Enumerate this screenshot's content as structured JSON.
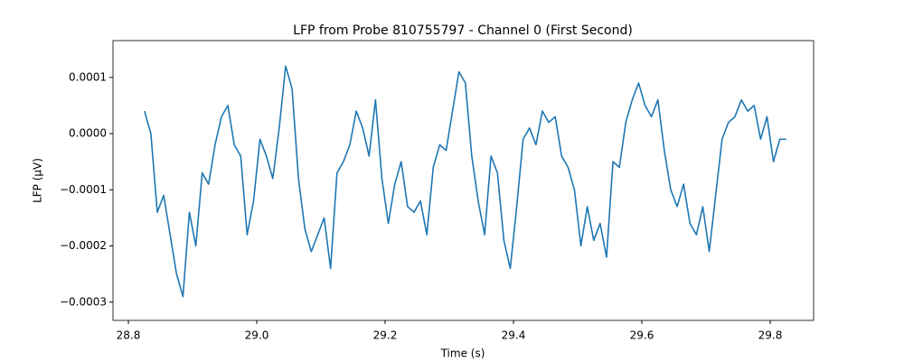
{
  "chart_data": {
    "type": "line",
    "title": "LFP from Probe 810755797 - Channel 0 (First Second)",
    "xlabel": "Time (s)",
    "ylabel": "LFP (µV)",
    "x": [
      28.825,
      28.835,
      28.845,
      28.855,
      28.865,
      28.875,
      28.885,
      28.895,
      28.905,
      28.915,
      28.925,
      28.935,
      28.945,
      28.955,
      28.965,
      28.975,
      28.985,
      28.995,
      29.005,
      29.015,
      29.025,
      29.035,
      29.045,
      29.055,
      29.065,
      29.075,
      29.085,
      29.095,
      29.105,
      29.115,
      29.125,
      29.135,
      29.145,
      29.155,
      29.165,
      29.175,
      29.185,
      29.195,
      29.205,
      29.215,
      29.225,
      29.235,
      29.245,
      29.255,
      29.265,
      29.275,
      29.285,
      29.295,
      29.305,
      29.315,
      29.325,
      29.335,
      29.345,
      29.355,
      29.365,
      29.375,
      29.385,
      29.395,
      29.405,
      29.415,
      29.425,
      29.435,
      29.445,
      29.455,
      29.465,
      29.475,
      29.485,
      29.495,
      29.505,
      29.515,
      29.525,
      29.535,
      29.545,
      29.555,
      29.565,
      29.575,
      29.585,
      29.595,
      29.605,
      29.615,
      29.625,
      29.635,
      29.645,
      29.655,
      29.665,
      29.675,
      29.685,
      29.695,
      29.705,
      29.715,
      29.725,
      29.735,
      29.745,
      29.755,
      29.765,
      29.775,
      29.785,
      29.795,
      29.805,
      29.815,
      29.825
    ],
    "series": [
      {
        "name": "Channel 0",
        "color": "#1f77b4",
        "values": [
          4e-05,
          0.0,
          -0.00014,
          -0.00011,
          -0.00018,
          -0.00025,
          -0.00029,
          -0.00014,
          -0.0002,
          -7e-05,
          -9e-05,
          -2e-05,
          3e-05,
          5e-05,
          -2e-05,
          -4e-05,
          -0.00018,
          -0.00012,
          -1e-05,
          -4e-05,
          -8e-05,
          1e-05,
          0.00012,
          8e-05,
          -8e-05,
          -0.00017,
          -0.00021,
          -0.00018,
          -0.00015,
          -0.00024,
          -7e-05,
          -5e-05,
          -2e-05,
          4e-05,
          1e-05,
          -4e-05,
          6e-05,
          -8e-05,
          -0.00016,
          -9e-05,
          -5e-05,
          -0.00013,
          -0.00014,
          -0.00012,
          -0.00018,
          -6e-05,
          -2e-05,
          -3e-05,
          4e-05,
          0.00011,
          9e-05,
          -4e-05,
          -0.00012,
          -0.00018,
          -4e-05,
          -7e-05,
          -0.00019,
          -0.00024,
          -0.00013,
          -1e-05,
          1e-05,
          -2e-05,
          4e-05,
          2e-05,
          3e-05,
          -4e-05,
          -6e-05,
          -0.0001,
          -0.0002,
          -0.00013,
          -0.00019,
          -0.00016,
          -0.00022,
          -5e-05,
          -6e-05,
          2e-05,
          6e-05,
          9e-05,
          5e-05,
          3e-05,
          6e-05,
          -3e-05,
          -0.0001,
          -0.00013,
          -9e-05,
          -0.00016,
          -0.00018,
          -0.00013,
          -0.00021,
          -0.00011,
          -1e-05,
          2e-05,
          3e-05,
          6e-05,
          4e-05,
          5e-05,
          -1e-05,
          3e-05,
          -5e-05,
          -1e-05,
          -1e-05
        ]
      }
    ],
    "xlim": [
      28.776,
      29.8676
    ],
    "ylim": [
      -0.0003325,
      0.0001655
    ],
    "xticks": [
      28.8,
      {
        "value": 29.0,
        "label": "29.0"
      },
      29.2,
      29.4,
      29.6,
      29.8
    ],
    "yticks": [
      {
        "value": -0.0003,
        "label": "−0.0003"
      },
      {
        "value": -0.0002,
        "label": "−0.0002"
      },
      {
        "value": -0.0001,
        "label": "−0.0001"
      },
      {
        "value": 0,
        "label": "0.0000"
      },
      {
        "value": 0.0001,
        "label": "0.0001"
      }
    ],
    "grid": false
  }
}
